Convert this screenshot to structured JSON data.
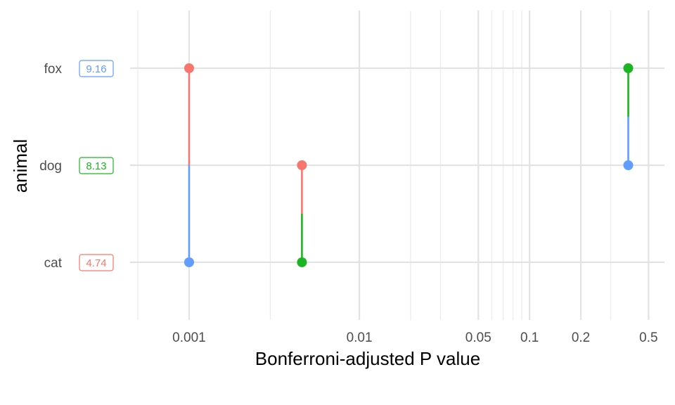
{
  "chart_data": {
    "type": "dot-segment",
    "xscale": "log10",
    "xlim": [
      0.00045,
      0.62
    ],
    "xlabel": "Bonferroni-adjusted P value",
    "ylabel": "animal",
    "x_tick_labels": [
      "0.001",
      "0.01",
      "0.05",
      "0.1",
      "0.2",
      "0.5"
    ],
    "x_tick_values": [
      0.001,
      0.01,
      0.05,
      0.1,
      0.2,
      0.5
    ],
    "x_minor_gridlines": [
      0.0005,
      0.003,
      0.02,
      0.03,
      0.06,
      0.07,
      0.08,
      0.09,
      0.3
    ],
    "grid": true,
    "categories": [
      "fox",
      "dog",
      "cat"
    ],
    "colors": {
      "red": "#F8766D",
      "green": "#1DB424",
      "blue": "#619CFF"
    },
    "badges": [
      {
        "category": "fox",
        "label": "9.16",
        "color": "#619CFF"
      },
      {
        "category": "dog",
        "label": "8.13",
        "color": "#1DB424"
      },
      {
        "category": "cat",
        "label": "4.74",
        "color": "#F8766D"
      }
    ],
    "segments": [
      {
        "from": "fox",
        "to": "cat",
        "p": 0.001,
        "from_color": "#F8766D",
        "to_color": "#619CFF"
      },
      {
        "from": "dog",
        "to": "cat",
        "p": 0.0046,
        "from_color": "#F8766D",
        "to_color": "#1DB424"
      },
      {
        "from": "fox",
        "to": "dog",
        "p": 0.38,
        "from_color": "#1DB424",
        "to_color": "#619CFF"
      }
    ]
  }
}
